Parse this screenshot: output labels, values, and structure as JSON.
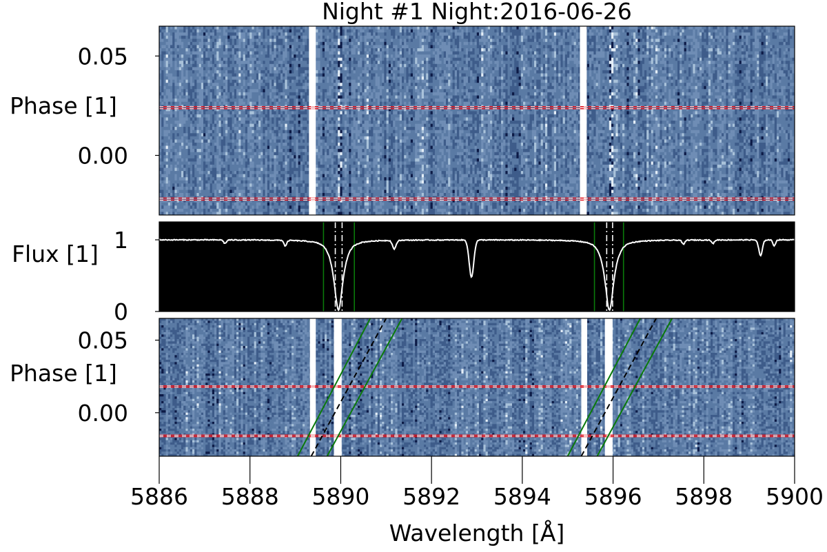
{
  "chart_data": [
    {
      "type": "heatmap",
      "title": "Night #1 Night:2016-06-26",
      "ylabel": "Phase [1]",
      "xlim": [
        5886,
        5900
      ],
      "ylim": [
        -0.03,
        0.065
      ],
      "yticks": [
        {
          "value": 0.0,
          "label": "0.00"
        },
        {
          "value": 0.05,
          "label": "0.05"
        }
      ],
      "colormap": [
        "#0c1a46",
        "#3e5c8a",
        "#5a7aa4",
        "#6f8db5",
        "#a9c2da",
        "#e4eef7"
      ],
      "masked_bands": [
        [
          5889.3,
          5889.45
        ],
        [
          5895.27,
          5895.42
        ]
      ],
      "absorption_cores": [
        5889.98,
        5895.94
      ],
      "transit_markers": {
        "color": "#e0141e",
        "phases": [
          0.0235,
          0.0245,
          -0.0215,
          -0.0225
        ]
      }
    },
    {
      "type": "line",
      "ylabel": "Flux [1]",
      "xlim": [
        5886,
        5900
      ],
      "ylim": [
        0,
        1.25
      ],
      "yticks": [
        {
          "value": 0,
          "label": "0"
        },
        {
          "value": 1,
          "label": "1"
        }
      ],
      "background": "#000000",
      "line_color": "#ffffff",
      "continuum": 1.0,
      "lines": [
        {
          "center": 5889.95,
          "depth": 0.98,
          "width": 0.14,
          "wing": 0.85
        },
        {
          "center": 5895.92,
          "depth": 0.98,
          "width": 0.14,
          "wing": 0.85
        },
        {
          "center": 5892.88,
          "depth": 0.52,
          "width": 0.05,
          "wing": 0.0
        },
        {
          "center": 5891.18,
          "depth": 0.12,
          "width": 0.04,
          "wing": 0.0
        },
        {
          "center": 5888.78,
          "depth": 0.08,
          "width": 0.03,
          "wing": 0.0
        },
        {
          "center": 5887.45,
          "depth": 0.05,
          "width": 0.03,
          "wing": 0.0
        },
        {
          "center": 5897.55,
          "depth": 0.06,
          "width": 0.03,
          "wing": 0.0
        },
        {
          "center": 5898.2,
          "depth": 0.05,
          "width": 0.03,
          "wing": 0.0
        },
        {
          "center": 5899.25,
          "depth": 0.22,
          "width": 0.04,
          "wing": 0.0
        },
        {
          "center": 5899.55,
          "depth": 0.08,
          "width": 0.03,
          "wing": 0.0
        }
      ],
      "green_lines": [
        5889.62,
        5890.3,
        5895.59,
        5896.23
      ],
      "dashdot_lines": [
        5889.88,
        5890.03,
        5895.86,
        5895.99
      ]
    },
    {
      "type": "heatmap",
      "ylabel": "Phase [1]",
      "xlim": [
        5886,
        5900
      ],
      "ylim": [
        -0.03,
        0.065
      ],
      "yticks": [
        {
          "value": 0.0,
          "label": "0.00"
        },
        {
          "value": 0.05,
          "label": "0.05"
        }
      ],
      "xlabel": "Wavelength [Å]",
      "xticks": [
        5886,
        5888,
        5890,
        5892,
        5894,
        5896,
        5898,
        5900
      ],
      "masked_bands": [
        [
          5889.32,
          5889.45
        ],
        [
          5889.85,
          5890.02
        ],
        [
          5895.3,
          5895.43
        ],
        [
          5895.82,
          5895.99
        ]
      ],
      "transit_markers": {
        "color": "#e0141e",
        "phases": [
          0.0175,
          0.0185,
          -0.0155,
          -0.0165
        ]
      },
      "trails": [
        {
          "color": "#0a7a0a",
          "style": "solid",
          "from": [
            5889.05,
            -0.03
          ],
          "to": [
            5890.65,
            0.065
          ]
        },
        {
          "color": "#0a7a0a",
          "style": "solid",
          "from": [
            5889.7,
            -0.03
          ],
          "to": [
            5891.35,
            0.065
          ]
        },
        {
          "color": "#000000",
          "style": "dashed",
          "from": [
            5889.35,
            -0.03
          ],
          "to": [
            5891.0,
            0.065
          ]
        },
        {
          "color": "#0a7a0a",
          "style": "solid",
          "from": [
            5895.0,
            -0.03
          ],
          "to": [
            5896.6,
            0.065
          ]
        },
        {
          "color": "#0a7a0a",
          "style": "solid",
          "from": [
            5895.65,
            -0.03
          ],
          "to": [
            5897.3,
            0.065
          ]
        },
        {
          "color": "#000000",
          "style": "dashed",
          "from": [
            5895.3,
            -0.03
          ],
          "to": [
            5896.95,
            0.065
          ]
        }
      ]
    }
  ]
}
